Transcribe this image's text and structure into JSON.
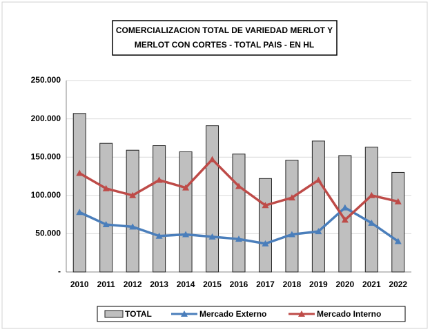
{
  "chart_data": {
    "type": "bar-line",
    "title": [
      "COMERCIALIZACION TOTAL DE VARIEDAD MERLOT Y",
      "MERLOT CON CORTES - TOTAL PAIS - EN HL"
    ],
    "categories": [
      "2010",
      "2011",
      "2012",
      "2013",
      "2014",
      "2015",
      "2016",
      "2017",
      "2018",
      "2019",
      "2020",
      "2021",
      "2022"
    ],
    "series": [
      {
        "name": "TOTAL",
        "type": "bar",
        "color": "#bfbfbf",
        "values": [
          207000,
          168000,
          159000,
          165000,
          157000,
          191000,
          154000,
          122000,
          146000,
          171000,
          152000,
          163000,
          130000
        ]
      },
      {
        "name": "Mercado Externo",
        "type": "line",
        "color": "#4a7ebb",
        "values": [
          78000,
          62000,
          59000,
          47000,
          49000,
          46000,
          43000,
          37000,
          49000,
          53000,
          84000,
          64000,
          40000
        ]
      },
      {
        "name": "Mercado Interno",
        "type": "line",
        "color": "#be4b48",
        "values": [
          129000,
          109000,
          100000,
          120000,
          110000,
          147000,
          112000,
          87000,
          97000,
          120000,
          68000,
          100000,
          92000
        ]
      }
    ],
    "ylim": [
      0,
      250000
    ],
    "yticks": [
      {
        "value": 0,
        "label": "-"
      },
      {
        "value": 50000,
        "label": "50.000"
      },
      {
        "value": 100000,
        "label": "100.000"
      },
      {
        "value": 150000,
        "label": "150.000"
      },
      {
        "value": 200000,
        "label": "200.000"
      },
      {
        "value": 250000,
        "label": "250.000"
      }
    ],
    "grid": true,
    "legend": "bottom"
  }
}
